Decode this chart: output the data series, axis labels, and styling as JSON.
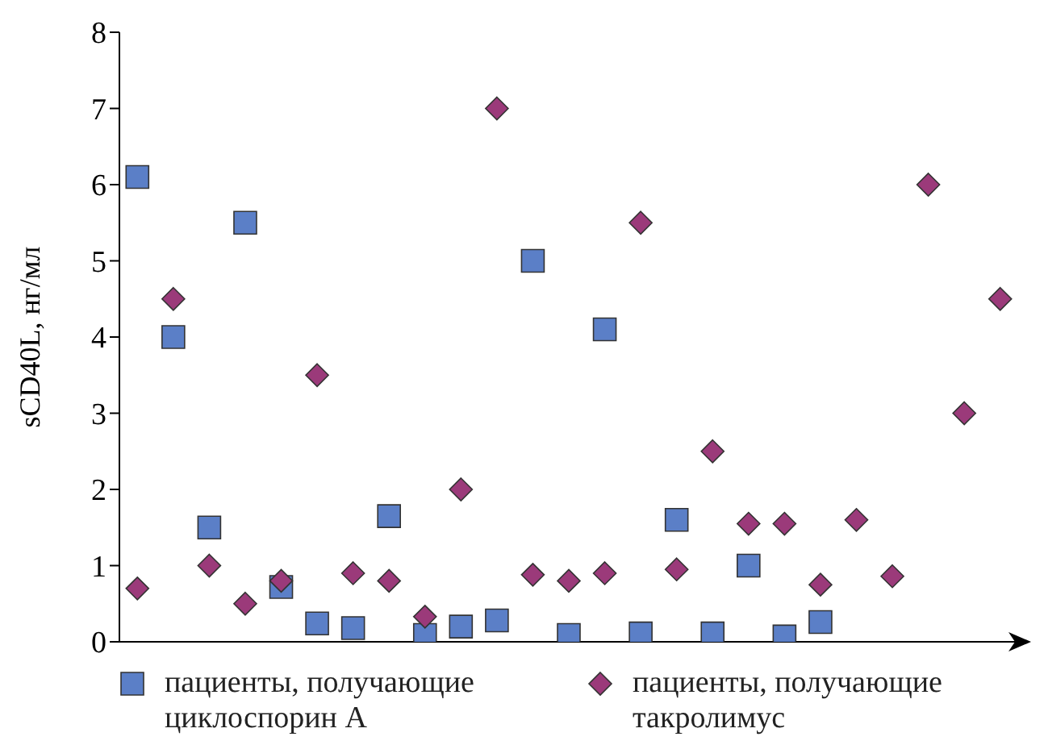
{
  "chart_data": {
    "type": "scatter",
    "ylabel": "sCD40L, нг/мл",
    "categories": [
      null,
      null,
      null,
      null,
      null,
      null,
      null,
      null,
      null,
      null,
      null,
      null,
      null,
      null,
      null,
      null,
      null,
      null,
      null,
      null,
      null,
      null,
      null,
      null,
      null
    ],
    "series": [
      {
        "name": "пациенты, получающие циклоспорин А",
        "color": "#5b7fc7",
        "marker": "square",
        "values": [
          6.1,
          4.0,
          1.5,
          5.5,
          0.72,
          0.24,
          0.18,
          1.65,
          0.09,
          0.2,
          0.28,
          5.0,
          0.09,
          4.1,
          0.11,
          1.6,
          0.11,
          1.0,
          0.07,
          0.26,
          null,
          null,
          null,
          null,
          null
        ]
      },
      {
        "name": "пациенты, получающие такролимус",
        "color": "#9b3a7a",
        "marker": "diamond",
        "values": [
          0.7,
          4.5,
          1.0,
          0.5,
          0.8,
          3.5,
          0.9,
          0.8,
          0.33,
          2.0,
          7.0,
          0.88,
          0.8,
          0.9,
          5.5,
          0.95,
          2.5,
          1.55,
          1.55,
          0.75,
          1.6,
          0.86,
          6.0,
          3.0,
          4.5
        ]
      }
    ],
    "ylim": [
      0,
      8
    ],
    "yticks": [
      0,
      1,
      2,
      3,
      4,
      5,
      6,
      7,
      8
    ],
    "grid": false,
    "legend": "bottom"
  }
}
